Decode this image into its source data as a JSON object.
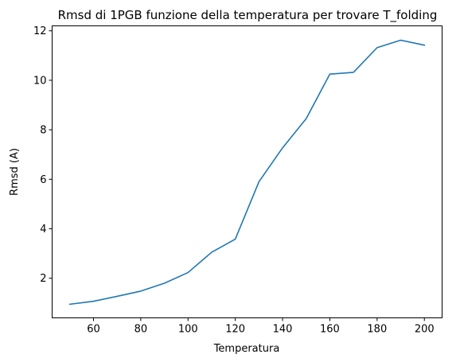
{
  "chart_data": {
    "type": "line",
    "title": "Rmsd di 1PGB funzione della temperatura per trovare T_folding",
    "xlabel": "Temperatura",
    "ylabel": "Rmsd (A)",
    "xlim": [
      42.5,
      207.5
    ],
    "ylim": [
      0.4,
      12.2
    ],
    "xticks": [
      60,
      80,
      100,
      120,
      140,
      160,
      180,
      200
    ],
    "yticks": [
      2,
      4,
      6,
      8,
      10,
      12
    ],
    "grid": false,
    "series": [
      {
        "color": "#1f77b4",
        "x": [
          50,
          60,
          70,
          80,
          90,
          100,
          110,
          120,
          130,
          140,
          150,
          160,
          170,
          180,
          190,
          200
        ],
        "y": [
          0.95,
          1.07,
          1.27,
          1.48,
          1.8,
          2.23,
          3.05,
          3.58,
          5.9,
          7.27,
          8.45,
          10.25,
          10.32,
          11.32,
          11.62,
          11.42
        ]
      }
    ]
  }
}
